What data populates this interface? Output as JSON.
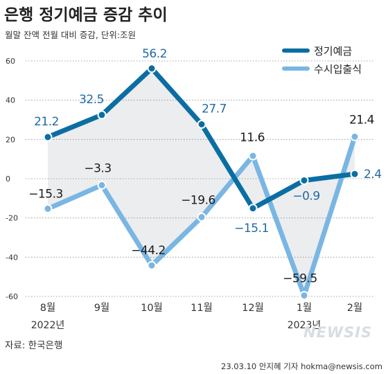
{
  "title": "은행 정기예금 증감 추이",
  "subtitle": "월말 잔액 전월 대비 증감, 단위:조원",
  "source": "자료: 한국은행",
  "credit": "23.03.10 안지혜 기자 hokma@newsis.com",
  "brand": "NEWSIS",
  "colors": {
    "deposit": "#0b6ea3",
    "savings": "#79b6e3",
    "label_dark": "#1a1a1a",
    "label_blue": "#1e6aa3",
    "grid": "#888888",
    "area": "#ecedef"
  },
  "chart_data": {
    "type": "line",
    "categories": [
      "8월",
      "9월",
      "10월",
      "11월",
      "12월",
      "1월",
      "2월"
    ],
    "year_labels": [
      {
        "index": 0,
        "label": "2022년"
      },
      {
        "index": 5,
        "label": "2023년"
      }
    ],
    "ylim": [
      -60,
      60
    ],
    "yticks": [
      60,
      40,
      20,
      0,
      -20,
      -40,
      -60
    ],
    "ytick_labels": [
      "60",
      "40",
      "20",
      "0",
      "-20",
      "-40",
      "-60"
    ],
    "grid": true,
    "legend_position": "top-right",
    "series": [
      {
        "name": "정기예금",
        "color": "#0b6ea3",
        "values": [
          21.2,
          32.5,
          56.2,
          27.7,
          -15.1,
          -0.9,
          2.4
        ],
        "labels": [
          "21.2",
          "32.5",
          "56.2",
          "27.7",
          "−15.1",
          "−0.9",
          "2.4"
        ]
      },
      {
        "name": "수시입출식",
        "color": "#79b6e3",
        "values": [
          -15.3,
          -3.3,
          -44.2,
          -19.6,
          11.6,
          -59.5,
          21.4
        ],
        "labels": [
          "−15.3",
          "−3.3",
          "−44.2",
          "−19.6",
          "11.6",
          "−59.5",
          "21.4"
        ]
      }
    ]
  }
}
